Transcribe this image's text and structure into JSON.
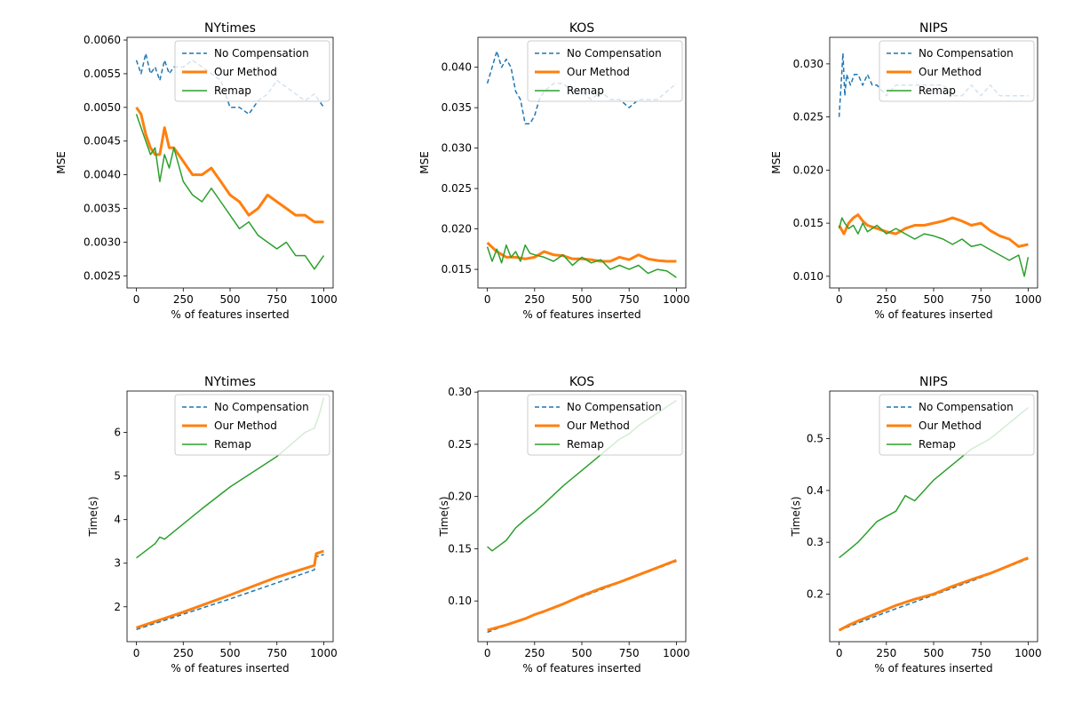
{
  "colors": {
    "no_comp": "#1f77b4",
    "ours": "#ff7f0e",
    "remap": "#2ca02c"
  },
  "legend_labels": [
    "No Compensation",
    "Our Method",
    "Remap"
  ],
  "chart_data": [
    {
      "type": "line",
      "title": "NYtimes",
      "xlabel": "% of features inserted",
      "ylabel": "MSE",
      "xlim": [
        -50,
        1050
      ],
      "ylim": [
        0.00232,
        0.00604
      ],
      "xticks": [
        0,
        250,
        500,
        750,
        1000
      ],
      "xtick_labels": [
        "0",
        "250",
        "500",
        "750",
        "1000"
      ],
      "yticks": [
        0.0025,
        0.003,
        0.0035,
        0.004,
        0.0045,
        0.005,
        0.0055,
        0.006
      ],
      "ytick_labels": [
        "0.0025",
        "0.0030",
        "0.0035",
        "0.0040",
        "0.0045",
        "0.0050",
        "0.0055",
        "0.0060"
      ],
      "legend": "top-right",
      "series": [
        {
          "name": "No Compensation",
          "x": [
            0,
            25,
            50,
            75,
            100,
            125,
            150,
            175,
            200,
            250,
            300,
            350,
            400,
            450,
            500,
            550,
            600,
            650,
            700,
            750,
            800,
            850,
            900,
            950,
            1000
          ],
          "y": [
            0.0057,
            0.0055,
            0.0058,
            0.0055,
            0.0056,
            0.0054,
            0.0057,
            0.0055,
            0.0056,
            0.0056,
            0.0057,
            0.0056,
            0.0055,
            0.0054,
            0.005,
            0.005,
            0.0049,
            0.0051,
            0.0052,
            0.0054,
            0.0053,
            0.0052,
            0.0051,
            0.0052,
            0.005
          ]
        },
        {
          "name": "Our Method",
          "x": [
            0,
            25,
            50,
            75,
            100,
            125,
            150,
            175,
            200,
            250,
            300,
            350,
            400,
            450,
            500,
            550,
            600,
            650,
            700,
            750,
            800,
            850,
            900,
            950,
            1000
          ],
          "y": [
            0.005,
            0.0049,
            0.0046,
            0.0044,
            0.0043,
            0.0043,
            0.0047,
            0.0044,
            0.0044,
            0.0042,
            0.004,
            0.004,
            0.0041,
            0.0039,
            0.0037,
            0.0036,
            0.0034,
            0.0035,
            0.0037,
            0.0036,
            0.0035,
            0.0034,
            0.0034,
            0.0033,
            0.0033
          ]
        },
        {
          "name": "Remap",
          "x": [
            0,
            25,
            50,
            75,
            100,
            125,
            150,
            175,
            200,
            250,
            300,
            350,
            400,
            450,
            500,
            550,
            600,
            650,
            700,
            750,
            800,
            850,
            900,
            950,
            1000
          ],
          "y": [
            0.0049,
            0.0047,
            0.0045,
            0.0043,
            0.0044,
            0.0039,
            0.0043,
            0.0041,
            0.0044,
            0.0039,
            0.0037,
            0.0036,
            0.0038,
            0.0036,
            0.0034,
            0.0032,
            0.0033,
            0.0031,
            0.003,
            0.0029,
            0.003,
            0.0028,
            0.0028,
            0.0026,
            0.0028
          ]
        }
      ]
    },
    {
      "type": "line",
      "title": "KOS",
      "xlabel": "% of features inserted",
      "ylabel": "MSE",
      "xlim": [
        -50,
        1050
      ],
      "ylim": [
        0.0127,
        0.0437
      ],
      "xticks": [
        0,
        250,
        500,
        750,
        1000
      ],
      "xtick_labels": [
        "0",
        "250",
        "500",
        "750",
        "1000"
      ],
      "yticks": [
        0.015,
        0.02,
        0.025,
        0.03,
        0.035,
        0.04
      ],
      "ytick_labels": [
        "0.015",
        "0.020",
        "0.025",
        "0.030",
        "0.035",
        "0.040"
      ],
      "legend": "top-right",
      "series": [
        {
          "name": "No Compensation",
          "x": [
            0,
            25,
            50,
            75,
            100,
            125,
            150,
            175,
            200,
            225,
            250,
            275,
            300,
            350,
            400,
            450,
            500,
            550,
            600,
            650,
            700,
            750,
            800,
            850,
            900,
            950,
            1000
          ],
          "y": [
            0.038,
            0.04,
            0.042,
            0.04,
            0.041,
            0.04,
            0.037,
            0.036,
            0.033,
            0.033,
            0.034,
            0.036,
            0.037,
            0.038,
            0.038,
            0.037,
            0.037,
            0.036,
            0.037,
            0.036,
            0.036,
            0.035,
            0.036,
            0.036,
            0.036,
            0.037,
            0.038
          ]
        },
        {
          "name": "Our Method",
          "x": [
            0,
            50,
            100,
            150,
            200,
            250,
            300,
            350,
            400,
            450,
            500,
            550,
            600,
            650,
            700,
            750,
            800,
            850,
            900,
            950,
            1000
          ],
          "y": [
            0.0183,
            0.0172,
            0.0165,
            0.0165,
            0.0163,
            0.0165,
            0.0172,
            0.0168,
            0.0167,
            0.0163,
            0.0163,
            0.0162,
            0.016,
            0.016,
            0.0165,
            0.0162,
            0.0168,
            0.0163,
            0.0161,
            0.016,
            0.016
          ]
        },
        {
          "name": "Remap",
          "x": [
            0,
            25,
            50,
            75,
            100,
            125,
            150,
            175,
            200,
            225,
            250,
            300,
            350,
            400,
            450,
            500,
            550,
            600,
            650,
            700,
            750,
            800,
            850,
            900,
            950,
            1000
          ],
          "y": [
            0.0178,
            0.016,
            0.0175,
            0.0158,
            0.018,
            0.0165,
            0.0172,
            0.016,
            0.018,
            0.017,
            0.0168,
            0.0165,
            0.016,
            0.0168,
            0.0155,
            0.0165,
            0.0158,
            0.0162,
            0.015,
            0.0155,
            0.015,
            0.0155,
            0.0145,
            0.015,
            0.0148,
            0.014
          ]
        }
      ]
    },
    {
      "type": "line",
      "title": "NIPS",
      "xlabel": "% of features inserted",
      "ylabel": "MSE",
      "xlim": [
        -50,
        1050
      ],
      "ylim": [
        0.0089,
        0.0325
      ],
      "xticks": [
        0,
        250,
        500,
        750,
        1000
      ],
      "xtick_labels": [
        "0",
        "250",
        "500",
        "750",
        "1000"
      ],
      "yticks": [
        0.01,
        0.015,
        0.02,
        0.025,
        0.03
      ],
      "ytick_labels": [
        "0.010",
        "0.015",
        "0.020",
        "0.025",
        "0.030"
      ],
      "legend": "top-right",
      "series": [
        {
          "name": "No Compensation",
          "x": [
            0,
            10,
            20,
            30,
            40,
            60,
            80,
            100,
            125,
            150,
            175,
            200,
            250,
            300,
            350,
            400,
            450,
            500,
            550,
            600,
            650,
            700,
            750,
            800,
            850,
            900,
            950,
            1000
          ],
          "y": [
            0.025,
            0.028,
            0.031,
            0.027,
            0.029,
            0.028,
            0.029,
            0.029,
            0.028,
            0.029,
            0.028,
            0.028,
            0.027,
            0.028,
            0.028,
            0.028,
            0.028,
            0.028,
            0.028,
            0.027,
            0.027,
            0.028,
            0.027,
            0.028,
            0.027,
            0.027,
            0.027,
            0.027
          ]
        },
        {
          "name": "Our Method",
          "x": [
            0,
            25,
            50,
            75,
            100,
            125,
            150,
            200,
            250,
            300,
            350,
            400,
            450,
            500,
            550,
            600,
            650,
            700,
            750,
            800,
            850,
            900,
            950,
            1000
          ],
          "y": [
            0.0148,
            0.014,
            0.015,
            0.0155,
            0.0158,
            0.0152,
            0.0148,
            0.0145,
            0.0142,
            0.014,
            0.0145,
            0.0148,
            0.0148,
            0.015,
            0.0152,
            0.0155,
            0.0152,
            0.0148,
            0.015,
            0.0143,
            0.0138,
            0.0135,
            0.0128,
            0.013
          ]
        },
        {
          "name": "Remap",
          "x": [
            0,
            15,
            30,
            50,
            75,
            100,
            125,
            150,
            200,
            250,
            300,
            350,
            400,
            450,
            500,
            550,
            600,
            650,
            700,
            750,
            800,
            850,
            900,
            950,
            980,
            1000
          ],
          "y": [
            0.0145,
            0.0155,
            0.015,
            0.0145,
            0.0148,
            0.014,
            0.015,
            0.0142,
            0.0148,
            0.014,
            0.0145,
            0.014,
            0.0135,
            0.014,
            0.0138,
            0.0135,
            0.013,
            0.0135,
            0.0128,
            0.013,
            0.0125,
            0.012,
            0.0115,
            0.012,
            0.01,
            0.0118
          ]
        }
      ]
    },
    {
      "type": "line",
      "title": "NYtimes",
      "xlabel": "% of features inserted",
      "ylabel": "Time(s)",
      "xlim": [
        -50,
        1050
      ],
      "ylim": [
        1.2,
        6.95
      ],
      "xticks": [
        0,
        250,
        500,
        750,
        1000
      ],
      "xtick_labels": [
        "0",
        "250",
        "500",
        "750",
        "1000"
      ],
      "yticks": [
        2,
        3,
        4,
        5,
        6
      ],
      "ytick_labels": [
        "2",
        "3",
        "4",
        "5",
        "6"
      ],
      "legend": "top-right",
      "series": [
        {
          "name": "No Compensation",
          "x": [
            0,
            250,
            500,
            750,
            950,
            960,
            1000
          ],
          "y": [
            1.48,
            1.83,
            2.18,
            2.55,
            2.85,
            3.15,
            3.2
          ]
        },
        {
          "name": "Our Method",
          "x": [
            0,
            125,
            250,
            500,
            750,
            950,
            960,
            1000
          ],
          "y": [
            1.52,
            1.7,
            1.88,
            2.27,
            2.68,
            2.95,
            3.22,
            3.28
          ]
        },
        {
          "name": "Remap",
          "x": [
            0,
            100,
            125,
            150,
            250,
            350,
            500,
            750,
            900,
            950,
            975,
            1000
          ],
          "y": [
            3.12,
            3.45,
            3.6,
            3.55,
            3.9,
            4.25,
            4.75,
            5.45,
            6.0,
            6.1,
            6.4,
            6.8
          ]
        }
      ]
    },
    {
      "type": "line",
      "title": "KOS",
      "xlabel": "% of features inserted",
      "ylabel": "Time(s)",
      "xlim": [
        -50,
        1050
      ],
      "ylim": [
        0.061,
        0.301
      ],
      "xticks": [
        0,
        250,
        500,
        750,
        1000
      ],
      "xtick_labels": [
        "0",
        "250",
        "500",
        "750",
        "1000"
      ],
      "yticks": [
        0.1,
        0.15,
        0.2,
        0.25,
        0.3
      ],
      "ytick_labels": [
        "0.10",
        "0.15",
        "0.20",
        "0.25",
        "0.30"
      ],
      "legend": "top-right",
      "series": [
        {
          "name": "No Compensation",
          "x": [
            0,
            250,
            500,
            750,
            1000
          ],
          "y": [
            0.07,
            0.087,
            0.104,
            0.121,
            0.138
          ]
        },
        {
          "name": "Our Method",
          "x": [
            0,
            100,
            200,
            250,
            300,
            400,
            500,
            600,
            700,
            800,
            900,
            1000
          ],
          "y": [
            0.072,
            0.077,
            0.083,
            0.087,
            0.09,
            0.097,
            0.105,
            0.112,
            0.118,
            0.125,
            0.132,
            0.139
          ]
        },
        {
          "name": "Remap",
          "x": [
            0,
            25,
            100,
            150,
            200,
            250,
            300,
            400,
            500,
            600,
            700,
            750,
            800,
            900,
            1000
          ],
          "y": [
            0.152,
            0.148,
            0.158,
            0.17,
            0.178,
            0.185,
            0.193,
            0.21,
            0.225,
            0.24,
            0.255,
            0.26,
            0.268,
            0.28,
            0.292
          ]
        }
      ]
    },
    {
      "type": "line",
      "title": "NIPS",
      "xlabel": "% of features inserted",
      "ylabel": "Time(s)",
      "xlim": [
        -50,
        1050
      ],
      "ylim": [
        0.108,
        0.592
      ],
      "xticks": [
        0,
        250,
        500,
        750,
        1000
      ],
      "xtick_labels": [
        "0",
        "250",
        "500",
        "750",
        "1000"
      ],
      "yticks": [
        0.2,
        0.3,
        0.4,
        0.5
      ],
      "ytick_labels": [
        "0.2",
        "0.3",
        "0.4",
        "0.5"
      ],
      "legend": "top-right",
      "series": [
        {
          "name": "No Compensation",
          "x": [
            0,
            250,
            500,
            750,
            1000
          ],
          "y": [
            0.13,
            0.165,
            0.198,
            0.232,
            0.268
          ]
        },
        {
          "name": "Our Method",
          "x": [
            0,
            50,
            100,
            200,
            300,
            400,
            500,
            600,
            700,
            800,
            900,
            1000
          ],
          "y": [
            0.13,
            0.14,
            0.148,
            0.163,
            0.178,
            0.19,
            0.2,
            0.215,
            0.228,
            0.24,
            0.255,
            0.27
          ]
        },
        {
          "name": "Remap",
          "x": [
            0,
            50,
            100,
            150,
            200,
            300,
            350,
            400,
            500,
            600,
            700,
            800,
            900,
            1000
          ],
          "y": [
            0.27,
            0.285,
            0.3,
            0.32,
            0.34,
            0.36,
            0.39,
            0.38,
            0.42,
            0.45,
            0.48,
            0.5,
            0.53,
            0.56
          ]
        }
      ]
    }
  ]
}
